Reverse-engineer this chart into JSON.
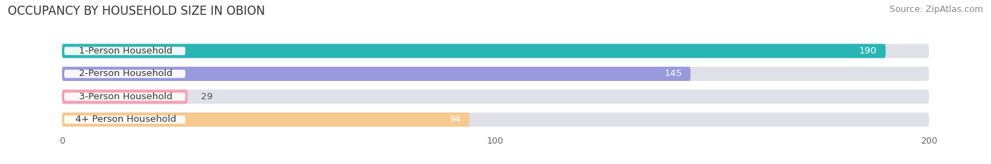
{
  "title": "OCCUPANCY BY HOUSEHOLD SIZE IN OBION",
  "source": "Source: ZipAtlas.com",
  "categories": [
    "1-Person Household",
    "2-Person Household",
    "3-Person Household",
    "4+ Person Household"
  ],
  "values": [
    190,
    145,
    29,
    94
  ],
  "bar_colors": [
    "#2ab5b5",
    "#9999dd",
    "#f4a0b5",
    "#f5c990"
  ],
  "value_inside_color": [
    "white",
    "white",
    "#666666",
    "#666666"
  ],
  "value_threshold": 60,
  "xlim": [
    -12,
    212
  ],
  "xmax": 200,
  "xticks": [
    0,
    100,
    200
  ],
  "background_color": "#ffffff",
  "bar_bg_color": "#e0e0e8",
  "title_fontsize": 12,
  "source_fontsize": 9,
  "label_fontsize": 9.5,
  "value_fontsize": 9.5,
  "bar_height": 0.62,
  "rounding": 0.31
}
